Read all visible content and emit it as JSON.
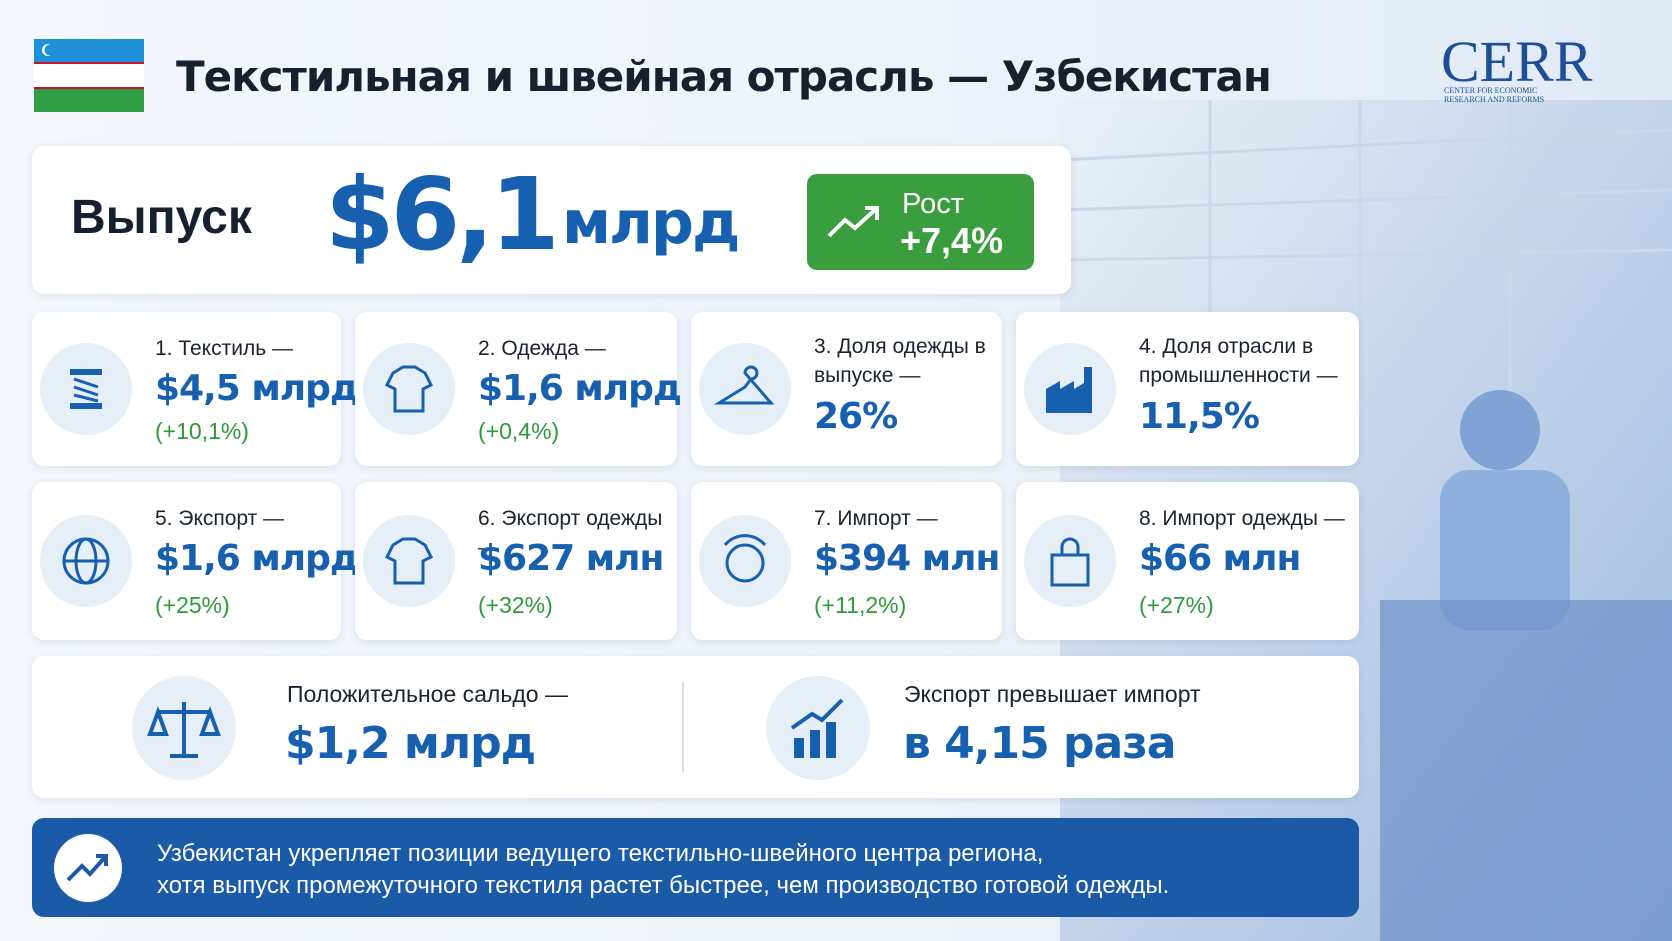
{
  "header": {
    "title": "Текстильная и швейная отрасль — Узбекистан",
    "logo": "CERR",
    "logo_caption": [
      "CENTER FOR ECONOMIC",
      "RESEARCH AND REFORMS"
    ]
  },
  "hero": {
    "label": "Выпуск",
    "value": "$6,1",
    "unit": "млрд",
    "growth_label": "Рост",
    "growth_value": "+7,4%"
  },
  "cards": [
    {
      "label": "1. Текстиль —",
      "value": "$4,5 млрд",
      "change": "(+10,1%)"
    },
    {
      "label": "2. Одежда —",
      "value": "$1,6 млрд",
      "change": "(+0,4%)"
    },
    {
      "label": "3. Доля одежды в выпуске —",
      "value": "26%"
    },
    {
      "label": "4. Доля отрасли в промышленности —",
      "value": "11,5%"
    },
    {
      "label": "5. Экспорт —",
      "value": "$1,6 млрд",
      "change": "(+25%)"
    },
    {
      "label": "6. Экспорт одежды —",
      "value": "$627 млн",
      "change": "(+32%)"
    },
    {
      "label": "7. Импорт —",
      "value": "$394 млн",
      "change": "(+11,2%)"
    },
    {
      "label": "8. Импорт одежды —",
      "value": "$66 млн",
      "change": "(+27%)"
    }
  ],
  "balance": [
    {
      "label": "Положительное сальдо —",
      "value": "$1,2 млрд"
    },
    {
      "label": "Экспорт превышает импорт",
      "value": "в 4,15 раза"
    }
  ],
  "footer": {
    "lines": [
      "Узбекистан укрепляет позиции ведущего текстильно-швейного центра региона,",
      "хотя выпуск промежуточного текстиля растет быстрее, чем производство готовой одежды."
    ]
  }
}
